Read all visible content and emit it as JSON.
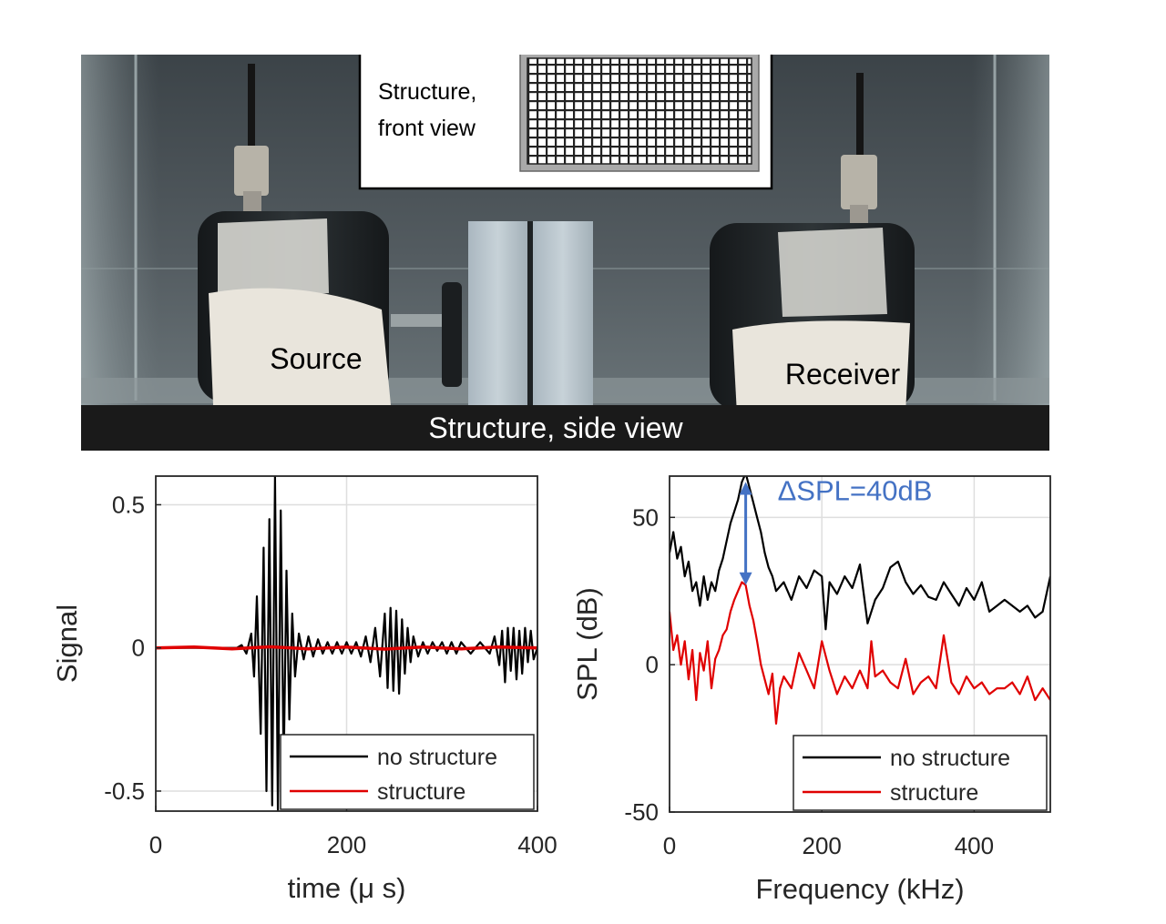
{
  "photo": {
    "labels": {
      "inset": [
        "Structure,",
        "front view"
      ],
      "source": "Source",
      "receiver": "Receiver",
      "side": "Structure, side view"
    }
  },
  "chart_data": [
    {
      "type": "line",
      "xlabel": "time (μ s)",
      "ylabel": "Signal",
      "xlim": [
        0,
        400
      ],
      "ylim": [
        -0.57,
        0.6
      ],
      "x_ticks": [
        0,
        200,
        400
      ],
      "y_ticks": [
        -0.5,
        0,
        0.5
      ],
      "y_tick_labels": [
        "-0.5",
        "0",
        "0.5"
      ],
      "grid": true,
      "legend": "bottom-right",
      "series": [
        {
          "name": "no structure",
          "color": "#000000",
          "x": [
            0,
            85,
            90,
            95,
            100,
            103,
            106,
            110,
            113,
            116,
            119,
            122,
            125,
            128,
            131,
            134,
            137,
            140,
            143,
            146,
            150,
            155,
            160,
            165,
            170,
            175,
            180,
            185,
            190,
            195,
            200,
            205,
            210,
            215,
            220,
            225,
            230,
            235,
            240,
            243,
            246,
            249,
            252,
            255,
            258,
            261,
            264,
            267,
            270,
            275,
            280,
            285,
            290,
            295,
            300,
            305,
            310,
            315,
            320,
            330,
            340,
            350,
            355,
            360,
            363,
            366,
            369,
            372,
            375,
            378,
            381,
            384,
            387,
            390,
            393,
            396,
            400
          ],
          "y": [
            0,
            0,
            0.01,
            -0.02,
            0.05,
            -0.1,
            0.18,
            -0.3,
            0.35,
            -0.5,
            0.45,
            -0.55,
            0.6,
            -0.58,
            0.48,
            -0.42,
            0.27,
            -0.25,
            0.12,
            -0.1,
            0.05,
            -0.04,
            0.04,
            -0.03,
            0.03,
            -0.02,
            0.02,
            -0.02,
            0.02,
            -0.02,
            0.02,
            -0.02,
            0.02,
            -0.03,
            0.04,
            -0.05,
            0.07,
            -0.1,
            0.12,
            -0.14,
            0.14,
            -0.15,
            0.13,
            -0.16,
            0.1,
            -0.09,
            0.07,
            -0.05,
            0.04,
            -0.03,
            0.02,
            -0.02,
            0.02,
            -0.01,
            0.02,
            -0.02,
            0.02,
            -0.02,
            0.02,
            -0.02,
            0.02,
            -0.02,
            0.04,
            -0.06,
            0.06,
            -0.12,
            0.07,
            -0.08,
            0.07,
            -0.11,
            0.06,
            -0.09,
            0.07,
            -0.05,
            0.06,
            -0.04,
            0
          ]
        },
        {
          "name": "structure",
          "color": "#e00000",
          "x": [
            0,
            40,
            80,
            120,
            160,
            200,
            240,
            280,
            320,
            360,
            400
          ],
          "y": [
            0,
            0.003,
            -0.003,
            0.004,
            -0.003,
            0.003,
            -0.004,
            0.003,
            -0.003,
            0.003,
            0
          ]
        }
      ]
    },
    {
      "type": "line",
      "xlabel": "Frequency (kHz)",
      "ylabel": "SPL (dB)",
      "xlim": [
        0,
        500
      ],
      "ylim": [
        -50,
        64
      ],
      "x_ticks": [
        0,
        200,
        400
      ],
      "y_ticks": [
        -50,
        0,
        50
      ],
      "y_tick_labels": [
        "-50",
        "0",
        "50"
      ],
      "grid": true,
      "legend": "bottom-right",
      "annotation": {
        "text": "ΔSPL=40dB",
        "x": 100,
        "y_top": 62,
        "y_bottom": 27,
        "color": "#4472c4"
      },
      "series": [
        {
          "name": "no structure",
          "color": "#000000",
          "x": [
            0,
            5,
            10,
            15,
            20,
            25,
            30,
            35,
            40,
            45,
            50,
            55,
            60,
            65,
            70,
            75,
            80,
            85,
            90,
            95,
            100,
            105,
            110,
            115,
            120,
            125,
            130,
            135,
            140,
            150,
            160,
            170,
            180,
            190,
            200,
            205,
            210,
            220,
            230,
            240,
            250,
            260,
            270,
            280,
            290,
            300,
            310,
            320,
            330,
            340,
            350,
            360,
            370,
            380,
            390,
            400,
            410,
            420,
            430,
            440,
            450,
            460,
            470,
            480,
            490,
            500
          ],
          "y": [
            38,
            45,
            36,
            40,
            30,
            35,
            25,
            28,
            20,
            30,
            22,
            28,
            25,
            32,
            36,
            42,
            48,
            52,
            56,
            62,
            65,
            60,
            55,
            50,
            45,
            38,
            33,
            30,
            25,
            28,
            22,
            30,
            26,
            32,
            30,
            12,
            28,
            24,
            30,
            26,
            34,
            14,
            22,
            26,
            33,
            35,
            28,
            24,
            27,
            23,
            22,
            28,
            24,
            20,
            26,
            22,
            28,
            18,
            20,
            22,
            20,
            18,
            20,
            16,
            18,
            30
          ]
        },
        {
          "name": "structure",
          "color": "#e00000",
          "x": [
            0,
            5,
            10,
            15,
            20,
            25,
            30,
            35,
            40,
            45,
            50,
            55,
            60,
            65,
            70,
            75,
            80,
            85,
            90,
            95,
            100,
            105,
            110,
            115,
            120,
            125,
            130,
            135,
            140,
            145,
            150,
            160,
            170,
            180,
            190,
            200,
            210,
            220,
            230,
            240,
            250,
            260,
            265,
            270,
            280,
            290,
            300,
            310,
            320,
            330,
            340,
            350,
            360,
            370,
            380,
            390,
            400,
            410,
            420,
            430,
            440,
            450,
            460,
            470,
            480,
            490,
            500
          ],
          "y": [
            18,
            5,
            10,
            0,
            8,
            -5,
            5,
            -12,
            4,
            -2,
            8,
            -8,
            2,
            5,
            10,
            12,
            18,
            22,
            25,
            28,
            27,
            20,
            15,
            8,
            0,
            -5,
            -10,
            -3,
            -20,
            -8,
            -4,
            -8,
            4,
            -2,
            -8,
            8,
            -2,
            -10,
            -4,
            -8,
            -2,
            -8,
            8,
            -4,
            -2,
            -6,
            -8,
            2,
            -10,
            -6,
            -4,
            -8,
            10,
            -6,
            -10,
            -4,
            -8,
            -6,
            -10,
            -8,
            -8,
            -6,
            -10,
            -4,
            -12,
            -8,
            -12
          ]
        }
      ]
    }
  ]
}
